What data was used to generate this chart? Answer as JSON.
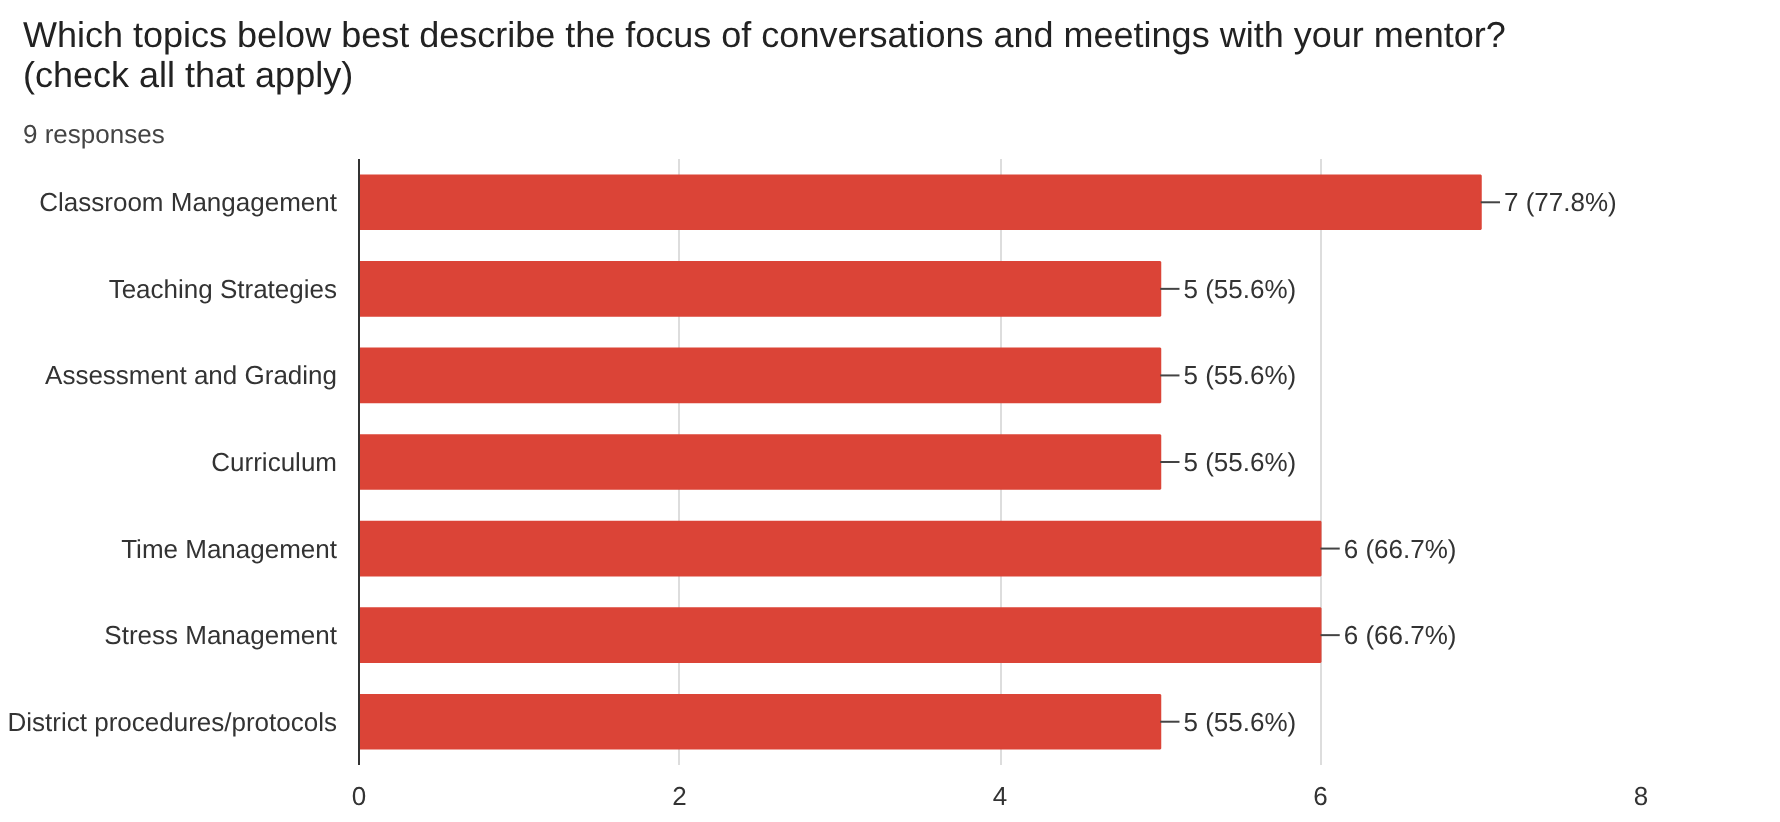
{
  "chart_data": {
    "type": "bar",
    "orientation": "horizontal",
    "title": "Which topics below best describe the focus of conversations and meetings with your mentor? (check all that apply)",
    "subtitle": "9 responses",
    "categories": [
      "Classroom Mangagement",
      "Teaching Strategies",
      "Assessment and Grading",
      "Curriculum",
      "Time Management",
      "Stress Management",
      "District procedures/protocols"
    ],
    "values": [
      7,
      5,
      5,
      5,
      6,
      6,
      5
    ],
    "value_labels": [
      "7 (77.8%)",
      "5 (55.6%)",
      "5 (55.6%)",
      "5 (55.6%)",
      "6 (66.7%)",
      "6 (66.7%)",
      "5 (55.6%)"
    ],
    "color": "#db4437",
    "xlim": [
      0,
      8
    ],
    "xticks": [
      0,
      2,
      4,
      6,
      8
    ],
    "grid": "x"
  }
}
